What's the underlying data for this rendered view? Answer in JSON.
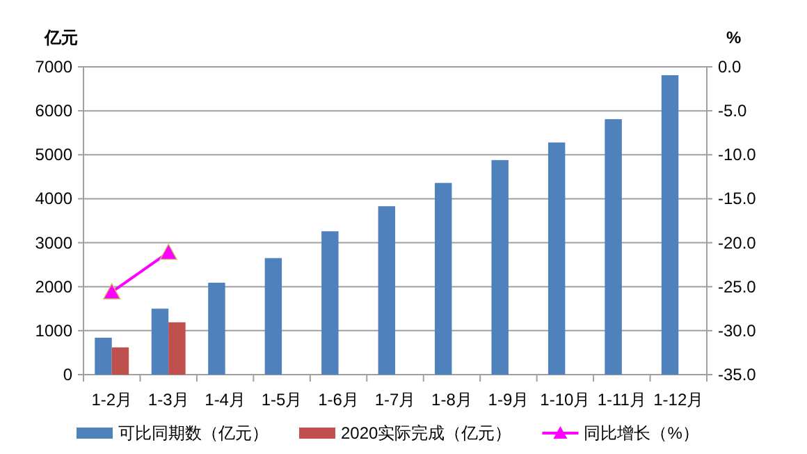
{
  "chart_data": {
    "type": "bar",
    "ylabel": "亿元",
    "y2label": "%",
    "categories": [
      "1-2月",
      "1-3月",
      "1-4月",
      "1-5月",
      "1-6月",
      "1-7月",
      "1-8月",
      "1-9月",
      "1-10月",
      "1-11月",
      "1-12月"
    ],
    "series": [
      {
        "name": "可比同期数（亿元）",
        "color": "#4f81bd",
        "values": [
          840,
          1500,
          2090,
          2650,
          3260,
          3830,
          4360,
          4880,
          5280,
          5810,
          6810
        ]
      },
      {
        "name": "2020实际完成（亿元）",
        "color": "#c0504d",
        "values": [
          620,
          1190,
          null,
          null,
          null,
          null,
          null,
          null,
          null,
          null,
          null
        ]
      },
      {
        "name": "同比增长（%）",
        "type": "line",
        "axis": "y2",
        "color": "#ff00ff",
        "marker": "triangle",
        "values": [
          -25.6,
          -21.1,
          null,
          null,
          null,
          null,
          null,
          null,
          null,
          null,
          null
        ]
      }
    ],
    "ylim": [
      0,
      7000
    ],
    "yticks": [
      0,
      1000,
      2000,
      3000,
      4000,
      5000,
      6000,
      7000
    ],
    "y2lim": [
      -35,
      0
    ],
    "y2ticks": [
      {
        "value": -35,
        "label": "-35.0"
      },
      {
        "value": -30,
        "label": "-30.0"
      },
      {
        "value": -25,
        "label": "-25.0"
      },
      {
        "value": -20,
        "label": "-20.0"
      },
      {
        "value": -15,
        "label": "-15.0"
      },
      {
        "value": -10,
        "label": "-10.0"
      },
      {
        "value": -5,
        "label": "-5.0"
      },
      {
        "value": 0,
        "label": "0.0"
      }
    ],
    "grid": "y",
    "legend": "bottom"
  }
}
